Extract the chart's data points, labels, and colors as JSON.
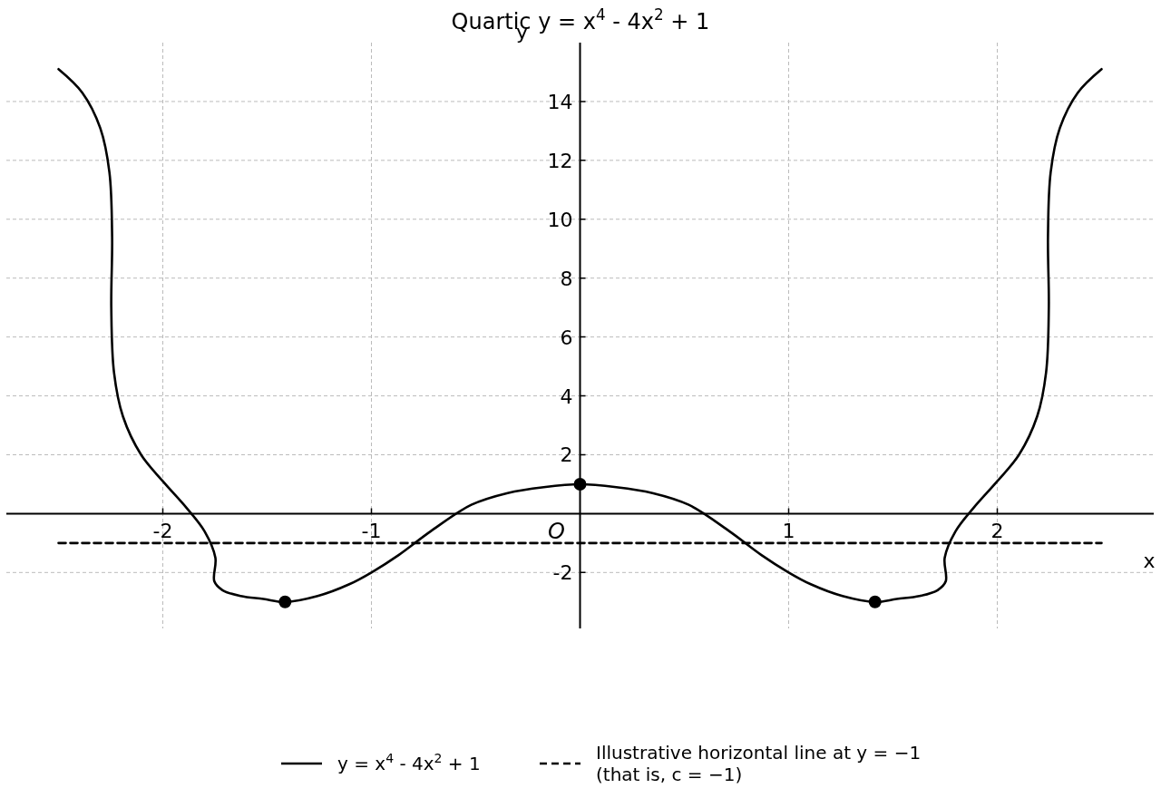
{
  "chart_data": {
    "type": "line",
    "title": "Quartic y = x$^{4}$ - 4x$^{2}$ + 1",
    "xlabel": "x",
    "ylabel": "y",
    "xlim": [
      -2.75,
      2.75
    ],
    "ylim": [
      -3.9,
      16
    ],
    "xticks": [
      -2,
      -1,
      1,
      2
    ],
    "yticks": [
      -2,
      2,
      4,
      6,
      8,
      10,
      12,
      14
    ],
    "grid": true,
    "legend": "bottom",
    "annotations": [
      "O"
    ],
    "series": [
      {
        "name": "y = x$^{4}$ - 4x$^{2}$ + 1",
        "color": "#000000",
        "line_style": "solid",
        "x": [
          -2.5,
          -2.386,
          -2.3,
          -2.256,
          -2.243,
          -2.247,
          -2.234,
          -2.191,
          -2.104,
          -2.0,
          -1.887,
          -1.8,
          -1.748,
          -1.753,
          -1.714,
          -1.627,
          -1.518,
          -1.414,
          -1.258,
          -1.106,
          -1.0,
          -0.868,
          -0.716,
          -0.521,
          -0.347,
          -0.174,
          0,
          0.174,
          0.347,
          0.521,
          0.716,
          0.868,
          1.0,
          1.106,
          1.258,
          1.414,
          1.518,
          1.627,
          1.714,
          1.753,
          1.748,
          1.8,
          1.887,
          2.0,
          2.104,
          2.191,
          2.234,
          2.247,
          2.243,
          2.256,
          2.3,
          2.386,
          2.5
        ],
        "values": [
          15.1,
          14.3,
          13.1,
          11.6,
          9.4,
          7.0,
          4.8,
          3.3,
          2.0,
          1.1,
          0.2,
          -0.6,
          -1.5,
          -2.3,
          -2.6,
          -2.8,
          -2.9,
          -3.0,
          -2.8,
          -2.4,
          -2.0,
          -1.4,
          -0.6,
          0.3,
          0.7,
          0.9,
          1.0,
          0.9,
          0.7,
          0.3,
          -0.6,
          -1.4,
          -2.0,
          -2.4,
          -2.8,
          -3.0,
          -2.9,
          -2.8,
          -2.6,
          -2.3,
          -1.5,
          -0.6,
          0.2,
          1.1,
          2.0,
          3.3,
          4.8,
          7.0,
          9.4,
          11.6,
          13.1,
          14.3,
          15.1
        ]
      },
      {
        "name": "Illustrative horizontal line at y = −1 (that is, c = −1)",
        "color": "#000000",
        "line_style": "dashed",
        "x": [
          -2.5,
          2.5
        ],
        "values": [
          -1,
          -1
        ]
      },
      {
        "type": "scatter",
        "color": "#000000",
        "marker": "circle",
        "x": [
          -1.414,
          0,
          1.414
        ],
        "values": [
          -3,
          1,
          -3
        ]
      }
    ]
  }
}
